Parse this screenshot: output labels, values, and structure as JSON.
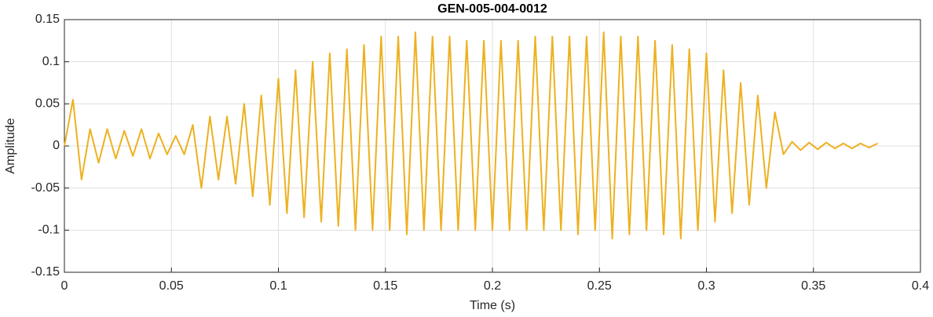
{
  "chart_data": {
    "type": "line",
    "title": "GEN-005-004-0012",
    "x_label": "Time (s)",
    "y_label": "Amplitude",
    "x": [
      0,
      0.004,
      0.008,
      0.012,
      0.016,
      0.02,
      0.024,
      0.028,
      0.032,
      0.036,
      0.04,
      0.044,
      0.048,
      0.052,
      0.056,
      0.06,
      0.064,
      0.068,
      0.072,
      0.076,
      0.08,
      0.084,
      0.088,
      0.092,
      0.096,
      0.1,
      0.104,
      0.108,
      0.112,
      0.116,
      0.12,
      0.124,
      0.128,
      0.132,
      0.136,
      0.14,
      0.144,
      0.148,
      0.152,
      0.156,
      0.16,
      0.164,
      0.168,
      0.172,
      0.176,
      0.18,
      0.184,
      0.188,
      0.192,
      0.196,
      0.2,
      0.204,
      0.208,
      0.212,
      0.216,
      0.22,
      0.224,
      0.228,
      0.232,
      0.236,
      0.24,
      0.244,
      0.248,
      0.252,
      0.256,
      0.26,
      0.264,
      0.268,
      0.272,
      0.276,
      0.28,
      0.284,
      0.288,
      0.292,
      0.296,
      0.3,
      0.304,
      0.308,
      0.312,
      0.316,
      0.32,
      0.324,
      0.328,
      0.332,
      0.336,
      0.34,
      0.344,
      0.348,
      0.352,
      0.356,
      0.36,
      0.364,
      0.368,
      0.372,
      0.376,
      0.38
    ],
    "values": [
      0,
      0.055,
      -0.04,
      0.02,
      -0.02,
      0.02,
      -0.015,
      0.018,
      -0.012,
      0.02,
      -0.015,
      0.015,
      -0.01,
      0.012,
      -0.01,
      0.025,
      -0.05,
      0.035,
      -0.04,
      0.035,
      -0.045,
      0.05,
      -0.06,
      0.06,
      -0.07,
      0.08,
      -0.08,
      0.09,
      -0.085,
      0.1,
      -0.09,
      0.11,
      -0.095,
      0.115,
      -0.1,
      0.12,
      -0.1,
      0.13,
      -0.1,
      0.13,
      -0.105,
      0.135,
      -0.1,
      0.13,
      -0.1,
      0.13,
      -0.1,
      0.125,
      -0.1,
      0.125,
      -0.1,
      0.125,
      -0.1,
      0.125,
      -0.1,
      0.13,
      -0.1,
      0.13,
      -0.1,
      0.13,
      -0.105,
      0.13,
      -0.1,
      0.135,
      -0.11,
      0.13,
      -0.105,
      0.13,
      -0.1,
      0.125,
      -0.105,
      0.12,
      -0.11,
      0.115,
      -0.1,
      0.11,
      -0.09,
      0.09,
      -0.08,
      0.075,
      -0.07,
      0.06,
      -0.05,
      0.04,
      -0.01,
      0.005,
      -0.005,
      0.004,
      -0.004,
      0.004,
      -0.003,
      0.003,
      -0.003,
      0.003,
      -0.002,
      0.003
    ],
    "color": "#EDB120",
    "xlim": [
      0,
      0.4
    ],
    "xticks": [
      0,
      0.05,
      0.1,
      0.15,
      0.2,
      0.25,
      0.3,
      0.35,
      0.4
    ],
    "ylim": [
      -0.15,
      0.15
    ],
    "yticks": [
      -0.15,
      -0.1,
      -0.05,
      0,
      0.05,
      0.1,
      0.15
    ],
    "grid": true
  }
}
